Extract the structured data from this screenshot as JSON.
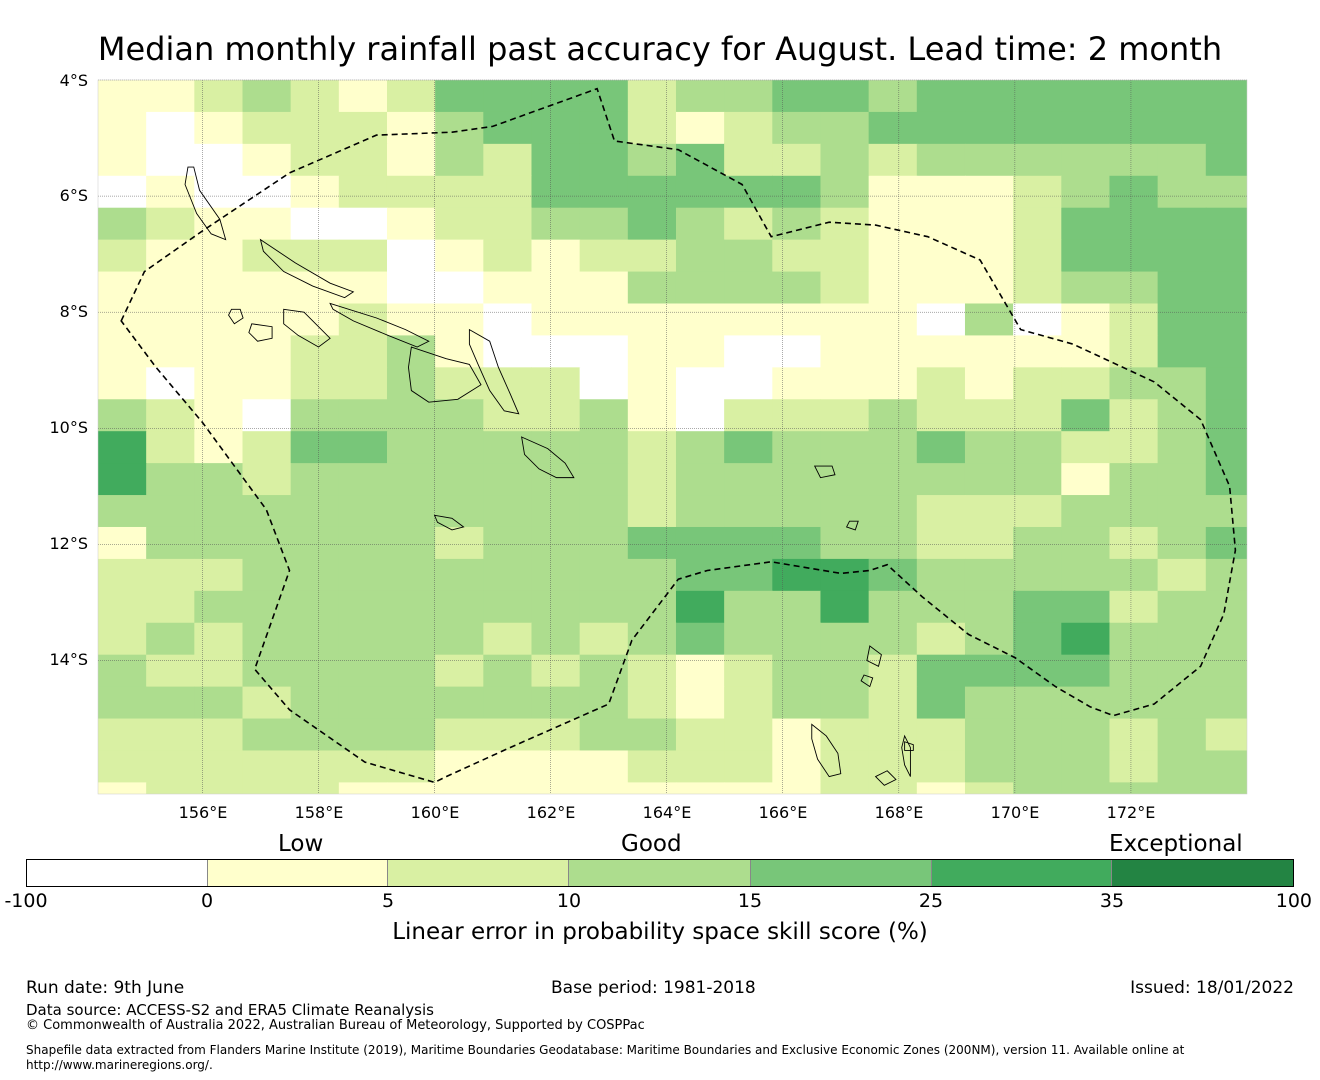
{
  "title": "Median monthly rainfall past accuracy for August. Lead time: 2 month",
  "map": {
    "lat_labels": [
      "4°S",
      "6°S",
      "8°S",
      "10°S",
      "12°S",
      "14°S"
    ],
    "lon_labels": [
      "156°E",
      "158°E",
      "160°E",
      "162°E",
      "164°E",
      "166°E",
      "168°E",
      "170°E",
      "172°E"
    ],
    "lon_range": [
      154.2,
      174.0
    ],
    "lat_range": [
      -4.0,
      -16.3
    ],
    "grid_cell_deg": [
      0.83,
      0.55
    ],
    "grid_values": [
      [
        1,
        1,
        2,
        3,
        2,
        1,
        2,
        4,
        4,
        4,
        4,
        2,
        3,
        3,
        4,
        4,
        3,
        4,
        4,
        4,
        4,
        4,
        4,
        4
      ],
      [
        1,
        0,
        1,
        2,
        2,
        2,
        1,
        3,
        4,
        4,
        4,
        2,
        1,
        2,
        3,
        3,
        4,
        4,
        4,
        4,
        4,
        4,
        4,
        4
      ],
      [
        1,
        0,
        0,
        1,
        2,
        2,
        1,
        3,
        2,
        4,
        4,
        3,
        4,
        2,
        2,
        3,
        2,
        3,
        3,
        3,
        3,
        3,
        3,
        4
      ],
      [
        0,
        1,
        0,
        0,
        1,
        2,
        2,
        2,
        2,
        4,
        4,
        4,
        4,
        4,
        4,
        3,
        1,
        1,
        1,
        2,
        3,
        4,
        3,
        3
      ],
      [
        3,
        2,
        1,
        1,
        0,
        0,
        1,
        2,
        2,
        3,
        3,
        4,
        3,
        2,
        3,
        2,
        1,
        1,
        1,
        2,
        4,
        4,
        4,
        4
      ],
      [
        2,
        1,
        1,
        2,
        2,
        2,
        0,
        1,
        2,
        1,
        2,
        2,
        3,
        3,
        2,
        2,
        1,
        1,
        1,
        2,
        4,
        4,
        4,
        4
      ],
      [
        1,
        1,
        1,
        1,
        1,
        1,
        0,
        0,
        1,
        1,
        1,
        3,
        3,
        3,
        3,
        2,
        1,
        1,
        1,
        2,
        3,
        3,
        4,
        4
      ],
      [
        1,
        1,
        1,
        1,
        1,
        2,
        1,
        1,
        0,
        1,
        1,
        1,
        1,
        1,
        1,
        1,
        1,
        0,
        3,
        0,
        1,
        2,
        4,
        4
      ],
      [
        1,
        1,
        1,
        1,
        2,
        2,
        3,
        1,
        0,
        0,
        0,
        1,
        1,
        0,
        0,
        1,
        1,
        1,
        1,
        1,
        1,
        2,
        4,
        4
      ],
      [
        1,
        0,
        1,
        1,
        2,
        2,
        3,
        2,
        2,
        2,
        0,
        1,
        0,
        0,
        1,
        1,
        1,
        2,
        1,
        2,
        2,
        3,
        3,
        4
      ],
      [
        3,
        2,
        1,
        0,
        3,
        3,
        3,
        3,
        2,
        2,
        3,
        1,
        0,
        2,
        2,
        2,
        3,
        2,
        2,
        2,
        4,
        2,
        3,
        4
      ],
      [
        5,
        2,
        1,
        2,
        4,
        4,
        3,
        3,
        3,
        3,
        3,
        2,
        3,
        4,
        3,
        3,
        3,
        4,
        3,
        3,
        2,
        2,
        3,
        4
      ],
      [
        5,
        3,
        3,
        2,
        3,
        3,
        3,
        3,
        3,
        3,
        3,
        2,
        3,
        3,
        3,
        3,
        3,
        3,
        3,
        3,
        1,
        3,
        3,
        4
      ],
      [
        3,
        3,
        3,
        3,
        3,
        3,
        3,
        3,
        3,
        3,
        3,
        2,
        3,
        3,
        3,
        3,
        3,
        2,
        2,
        2,
        3,
        3,
        3,
        3
      ],
      [
        1,
        3,
        3,
        3,
        3,
        3,
        3,
        2,
        3,
        3,
        3,
        4,
        4,
        4,
        4,
        3,
        3,
        2,
        2,
        3,
        3,
        2,
        3,
        4
      ],
      [
        2,
        2,
        2,
        3,
        3,
        3,
        3,
        3,
        3,
        3,
        3,
        3,
        4,
        4,
        5,
        5,
        4,
        3,
        3,
        3,
        3,
        3,
        2,
        3
      ],
      [
        2,
        2,
        3,
        3,
        3,
        3,
        3,
        3,
        3,
        3,
        3,
        3,
        5,
        3,
        3,
        5,
        3,
        3,
        3,
        4,
        4,
        2,
        3,
        3
      ],
      [
        2,
        3,
        2,
        3,
        3,
        3,
        3,
        3,
        2,
        3,
        2,
        3,
        4,
        3,
        3,
        3,
        3,
        2,
        3,
        4,
        5,
        3,
        3,
        3
      ],
      [
        3,
        2,
        2,
        3,
        3,
        3,
        3,
        2,
        3,
        2,
        3,
        2,
        1,
        2,
        3,
        3,
        2,
        4,
        4,
        4,
        4,
        3,
        3,
        3
      ],
      [
        3,
        3,
        3,
        2,
        3,
        3,
        3,
        3,
        3,
        3,
        3,
        2,
        1,
        2,
        3,
        3,
        2,
        4,
        3,
        3,
        3,
        3,
        3,
        3
      ],
      [
        2,
        2,
        2,
        3,
        3,
        3,
        3,
        2,
        2,
        2,
        3,
        3,
        2,
        2,
        1,
        2,
        2,
        2,
        3,
        3,
        3,
        2,
        3,
        2
      ],
      [
        2,
        2,
        2,
        2,
        2,
        2,
        2,
        1,
        1,
        1,
        1,
        2,
        2,
        2,
        1,
        2,
        2,
        2,
        3,
        3,
        3,
        2,
        3,
        3
      ],
      [
        1,
        2,
        2,
        2,
        2,
        1,
        1,
        1,
        1,
        1,
        1,
        1,
        1,
        1,
        1,
        2,
        2,
        1,
        2,
        3,
        3,
        3,
        3,
        3
      ]
    ],
    "eez_boundary": [
      [
        154.6,
        -8.15
      ],
      [
        155.0,
        -7.3
      ],
      [
        156.0,
        -6.6
      ],
      [
        157.5,
        -5.6
      ],
      [
        159.0,
        -4.95
      ],
      [
        160.3,
        -4.9
      ],
      [
        161.0,
        -4.8
      ],
      [
        162.8,
        -4.15
      ],
      [
        162.95,
        -4.6
      ],
      [
        163.1,
        -5.05
      ],
      [
        164.2,
        -5.2
      ],
      [
        165.3,
        -5.8
      ],
      [
        165.8,
        -6.7
      ],
      [
        166.8,
        -6.45
      ],
      [
        167.6,
        -6.5
      ],
      [
        168.5,
        -6.7
      ],
      [
        169.4,
        -7.1
      ],
      [
        170.1,
        -8.3
      ],
      [
        171.0,
        -8.55
      ],
      [
        172.4,
        -9.2
      ],
      [
        173.2,
        -9.85
      ],
      [
        173.7,
        -11.0
      ],
      [
        173.8,
        -12.1
      ],
      [
        173.6,
        -13.2
      ],
      [
        173.2,
        -14.1
      ],
      [
        172.4,
        -14.75
      ],
      [
        171.7,
        -14.95
      ],
      [
        171.3,
        -14.8
      ],
      [
        170.7,
        -14.45
      ],
      [
        170.0,
        -13.95
      ],
      [
        169.2,
        -13.55
      ],
      [
        168.4,
        -12.9
      ],
      [
        167.8,
        -12.35
      ],
      [
        167.5,
        -12.45
      ],
      [
        167.0,
        -12.5
      ],
      [
        165.8,
        -12.3
      ],
      [
        164.7,
        -12.45
      ],
      [
        164.2,
        -12.6
      ],
      [
        163.4,
        -13.65
      ],
      [
        163.0,
        -14.75
      ],
      [
        161.3,
        -15.5
      ],
      [
        160.2,
        -16.0
      ],
      [
        160.0,
        -16.1
      ],
      [
        158.8,
        -15.75
      ],
      [
        157.5,
        -14.85
      ],
      [
        156.9,
        -14.15
      ],
      [
        157.5,
        -12.45
      ],
      [
        157.1,
        -11.4
      ],
      [
        156.0,
        -9.9
      ],
      [
        155.2,
        -8.95
      ],
      [
        154.6,
        -8.15
      ]
    ],
    "islands": [
      [
        [
          157.0,
          -6.75
        ],
        [
          157.6,
          -7.15
        ],
        [
          158.2,
          -7.5
        ],
        [
          158.6,
          -7.65
        ],
        [
          158.45,
          -7.75
        ],
        [
          157.9,
          -7.55
        ],
        [
          157.4,
          -7.3
        ],
        [
          157.05,
          -6.95
        ]
      ],
      [
        [
          158.2,
          -7.85
        ],
        [
          159.0,
          -8.1
        ],
        [
          159.5,
          -8.3
        ],
        [
          159.9,
          -8.5
        ],
        [
          159.7,
          -8.6
        ],
        [
          159.2,
          -8.4
        ],
        [
          158.6,
          -8.15
        ],
        [
          158.25,
          -7.95
        ]
      ],
      [
        [
          159.6,
          -8.6
        ],
        [
          160.2,
          -8.8
        ],
        [
          160.6,
          -8.9
        ],
        [
          160.8,
          -9.25
        ],
        [
          160.4,
          -9.5
        ],
        [
          159.9,
          -9.55
        ],
        [
          159.6,
          -9.35
        ],
        [
          159.55,
          -8.95
        ]
      ],
      [
        [
          160.6,
          -8.3
        ],
        [
          160.95,
          -8.5
        ],
        [
          161.1,
          -8.95
        ],
        [
          161.3,
          -9.4
        ],
        [
          161.45,
          -9.75
        ],
        [
          161.2,
          -9.7
        ],
        [
          160.95,
          -9.35
        ],
        [
          160.75,
          -8.9
        ],
        [
          160.6,
          -8.55
        ]
      ],
      [
        [
          161.5,
          -10.15
        ],
        [
          161.95,
          -10.35
        ],
        [
          162.25,
          -10.6
        ],
        [
          162.4,
          -10.85
        ],
        [
          162.1,
          -10.85
        ],
        [
          161.8,
          -10.7
        ],
        [
          161.55,
          -10.45
        ]
      ],
      [
        [
          157.4,
          -7.95
        ],
        [
          157.75,
          -8.0
        ],
        [
          158.0,
          -8.25
        ],
        [
          158.2,
          -8.45
        ],
        [
          158.0,
          -8.6
        ],
        [
          157.65,
          -8.4
        ],
        [
          157.4,
          -8.2
        ]
      ],
      [
        [
          156.85,
          -8.2
        ],
        [
          157.2,
          -8.25
        ],
        [
          157.2,
          -8.45
        ],
        [
          156.95,
          -8.5
        ],
        [
          156.8,
          -8.35
        ]
      ],
      [
        [
          155.85,
          -5.5
        ],
        [
          155.95,
          -5.9
        ],
        [
          156.3,
          -6.4
        ],
        [
          156.4,
          -6.75
        ],
        [
          156.15,
          -6.65
        ],
        [
          155.9,
          -6.3
        ],
        [
          155.7,
          -5.8
        ],
        [
          155.75,
          -5.5
        ]
      ],
      [
        [
          156.5,
          -7.95
        ],
        [
          156.65,
          -7.95
        ],
        [
          156.7,
          -8.1
        ],
        [
          156.55,
          -8.2
        ],
        [
          156.45,
          -8.05
        ]
      ],
      [
        [
          160.0,
          -11.5
        ],
        [
          160.3,
          -11.55
        ],
        [
          160.5,
          -11.7
        ],
        [
          160.3,
          -11.75
        ],
        [
          160.05,
          -11.62
        ]
      ],
      [
        [
          166.55,
          -10.65
        ],
        [
          166.85,
          -10.65
        ],
        [
          166.9,
          -10.8
        ],
        [
          166.65,
          -10.85
        ]
      ],
      [
        [
          167.5,
          -13.75
        ],
        [
          167.7,
          -13.9
        ],
        [
          167.65,
          -14.1
        ],
        [
          167.45,
          -14.0
        ]
      ],
      [
        [
          166.5,
          -15.1
        ],
        [
          166.75,
          -15.3
        ],
        [
          166.95,
          -15.6
        ],
        [
          167.0,
          -15.95
        ],
        [
          166.8,
          -16.0
        ],
        [
          166.6,
          -15.7
        ],
        [
          166.5,
          -15.35
        ]
      ],
      [
        [
          168.1,
          -15.3
        ],
        [
          168.2,
          -15.5
        ],
        [
          168.2,
          -16.0
        ],
        [
          168.1,
          -15.8
        ],
        [
          168.05,
          -15.5
        ]
      ],
      [
        [
          167.6,
          -16.0
        ],
        [
          167.8,
          -15.9
        ],
        [
          167.95,
          -16.05
        ],
        [
          167.75,
          -16.15
        ]
      ],
      [
        [
          167.4,
          -14.25
        ],
        [
          167.55,
          -14.3
        ],
        [
          167.5,
          -14.45
        ],
        [
          167.35,
          -14.35
        ]
      ],
      [
        [
          167.15,
          -11.6
        ],
        [
          167.3,
          -11.6
        ],
        [
          167.25,
          -11.75
        ],
        [
          167.1,
          -11.7
        ]
      ],
      [
        [
          168.1,
          -15.4
        ],
        [
          168.25,
          -15.45
        ],
        [
          168.25,
          -15.55
        ],
        [
          168.1,
          -15.55
        ]
      ]
    ]
  },
  "legend": {
    "categories": [
      "Low",
      "Good",
      "Exceptional"
    ],
    "ticks": [
      "-100",
      "0",
      "5",
      "10",
      "15",
      "25",
      "35",
      "100"
    ],
    "colors": [
      "#ffffff",
      "#ffffcc",
      "#d9f0a3",
      "#addd8e",
      "#78c679",
      "#41ab5d",
      "#238443"
    ],
    "title": "Linear error in probability space skill score (%)"
  },
  "footer": {
    "run_date": "Run date: 9th June",
    "base_period": "Base period: 1981-2018",
    "issued": "Issued: 18/01/2022",
    "data_source": "Data source: ACCESS-S2 and ERA5 Climate Reanalysis",
    "copyright": "© Commonwealth of Australia 2022, Australian Bureau of Meteorology, Supported by COSPPac",
    "shapefile_line1": "Shapefile data extracted from Flanders Marine Institute (2019), Maritime Boundaries Geodatabase: Maritime Boundaries and Exclusive Economic Zones (200NM), version 11. Available online at",
    "shapefile_line2": "http://www.marineregions.org/."
  }
}
